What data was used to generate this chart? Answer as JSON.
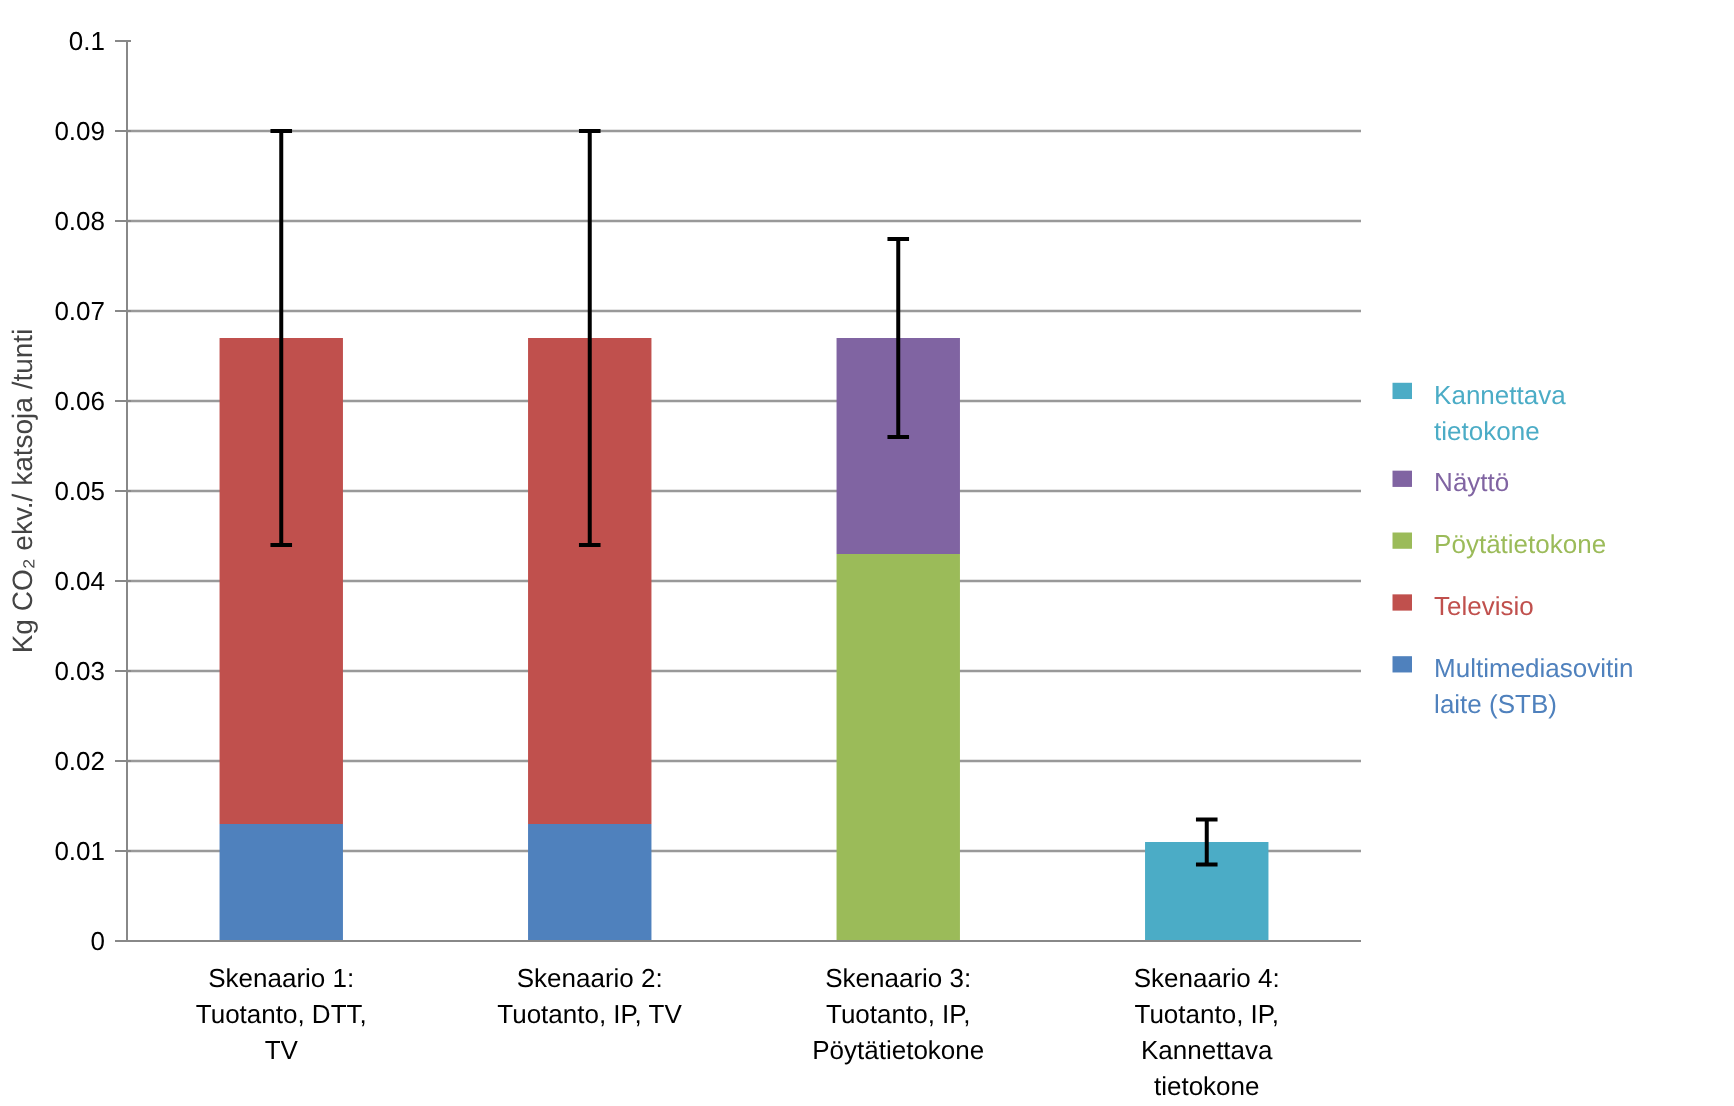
{
  "chart_data": {
    "type": "bar",
    "stacked": true,
    "ylabel": "Kg CO₂ ekv./ katsoja /tunti",
    "categories": [
      "Skenaario 1: Tuotanto, DTT, TV",
      "Skenaario 2: Tuotanto, IP, TV",
      "Skenaario 3: Tuotanto, IP, Pöytätietokone",
      "Skenaario 4: Tuotanto, IP, Kannettava tietokone"
    ],
    "series": [
      {
        "name": "Multimediasovitin laite (STB)",
        "color": "#4f81bd",
        "values": [
          0.013,
          0.013,
          null,
          null
        ]
      },
      {
        "name": "Televisio",
        "color": "#c0504d",
        "values": [
          0.054,
          0.054,
          null,
          null
        ],
        "errors": [
          0.023,
          0.023,
          null,
          null
        ]
      },
      {
        "name": "Pöytätietokone",
        "color": "#9bbb59",
        "values": [
          null,
          null,
          0.043,
          null
        ]
      },
      {
        "name": "Näyttö",
        "color": "#8064a2",
        "values": [
          null,
          null,
          0.024,
          null
        ],
        "errors": [
          null,
          null,
          0.011,
          null
        ]
      },
      {
        "name": "Kannettava tietokone",
        "color": "#4bacc6",
        "values": [
          null,
          null,
          null,
          0.011
        ],
        "errors": [
          null,
          null,
          null,
          0.0025
        ]
      }
    ],
    "ylim": [
      0,
      0.1
    ],
    "yticks": [
      0,
      0.01,
      0.02,
      0.03,
      0.04,
      0.05,
      0.06,
      0.07,
      0.08,
      0.09,
      0.1
    ],
    "grid": "y",
    "legend": "right"
  }
}
